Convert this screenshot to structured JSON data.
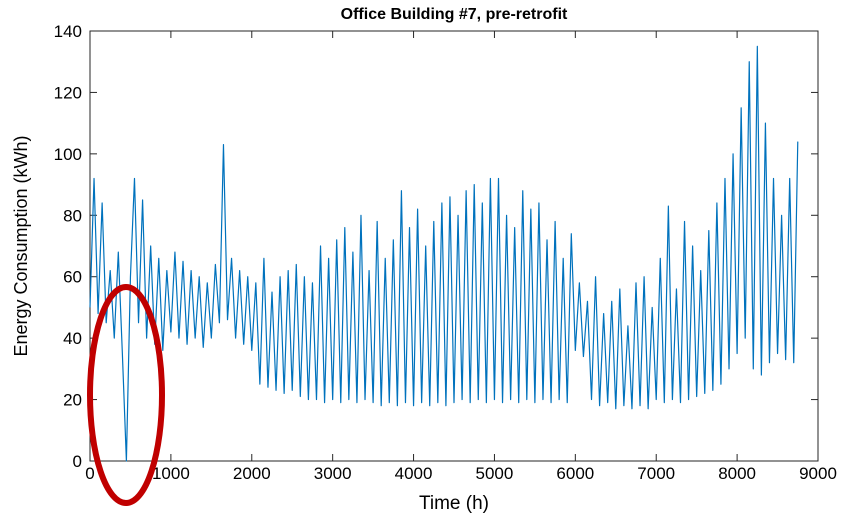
{
  "chart_data": {
    "type": "line",
    "title": "Office Building #7, pre-retrofit",
    "xlabel": "Time (h)",
    "ylabel": "Energy Consumption (kWh)",
    "x": [
      0,
      50,
      100,
      150,
      200,
      250,
      300,
      350,
      400,
      450,
      500,
      550,
      600,
      650,
      700,
      750,
      800,
      850,
      900,
      950,
      1000,
      1050,
      1100,
      1150,
      1200,
      1250,
      1300,
      1350,
      1400,
      1450,
      1500,
      1550,
      1600,
      1650,
      1700,
      1750,
      1800,
      1850,
      1900,
      1950,
      2000,
      2050,
      2100,
      2150,
      2200,
      2250,
      2300,
      2350,
      2400,
      2450,
      2500,
      2550,
      2600,
      2650,
      2700,
      2750,
      2800,
      2850,
      2900,
      2950,
      3000,
      3050,
      3100,
      3150,
      3200,
      3250,
      3300,
      3350,
      3400,
      3450,
      3500,
      3550,
      3600,
      3650,
      3700,
      3750,
      3800,
      3850,
      3900,
      3950,
      4000,
      4050,
      4100,
      4150,
      4200,
      4250,
      4300,
      4350,
      4400,
      4450,
      4500,
      4550,
      4600,
      4650,
      4700,
      4750,
      4800,
      4850,
      4900,
      4950,
      5000,
      5050,
      5100,
      5150,
      5200,
      5250,
      5300,
      5350,
      5400,
      5450,
      5500,
      5550,
      5600,
      5650,
      5700,
      5750,
      5800,
      5850,
      5900,
      5950,
      6000,
      6050,
      6100,
      6150,
      6200,
      6250,
      6300,
      6350,
      6400,
      6450,
      6500,
      6550,
      6600,
      6650,
      6700,
      6750,
      6800,
      6850,
      6900,
      6950,
      7000,
      7050,
      7100,
      7150,
      7200,
      7250,
      7300,
      7350,
      7400,
      7450,
      7500,
      7550,
      7600,
      7650,
      7700,
      7750,
      7800,
      7850,
      7900,
      7950,
      8000,
      8050,
      8100,
      8150,
      8200,
      8250,
      8300,
      8350,
      8400,
      8450,
      8500,
      8550,
      8600,
      8650,
      8700,
      8750
    ],
    "series": [
      {
        "color": "#0072bd",
        "values": [
          50,
          92,
          48,
          84,
          45,
          62,
          40,
          68,
          35,
          0,
          60,
          92,
          45,
          85,
          40,
          70,
          38,
          66,
          36,
          62,
          42,
          68,
          40,
          65,
          38,
          62,
          40,
          60,
          37,
          58,
          40,
          64,
          45,
          103,
          46,
          66,
          40,
          62,
          38,
          60,
          36,
          58,
          25,
          66,
          24,
          55,
          23,
          60,
          22,
          62,
          23,
          64,
          21,
          60,
          20,
          58,
          20,
          70,
          19,
          66,
          20,
          72,
          19,
          76,
          20,
          68,
          19,
          80,
          20,
          62,
          19,
          78,
          18,
          66,
          19,
          72,
          18,
          88,
          19,
          76,
          18,
          82,
          19,
          70,
          18,
          78,
          19,
          84,
          18,
          86,
          19,
          80,
          20,
          88,
          19,
          90,
          20,
          84,
          19,
          92,
          20,
          92,
          19,
          80,
          20,
          76,
          19,
          88,
          20,
          82,
          19,
          84,
          20,
          72,
          19,
          78,
          20,
          66,
          19,
          74,
          36,
          58,
          34,
          52,
          20,
          60,
          18,
          48,
          19,
          52,
          17,
          56,
          18,
          44,
          17,
          58,
          18,
          60,
          17,
          50,
          20,
          66,
          19,
          83,
          20,
          56,
          19,
          78,
          20,
          70,
          21,
          62,
          22,
          75,
          23,
          84,
          25,
          92,
          30,
          100,
          35,
          115,
          40,
          130,
          30,
          135,
          28,
          110,
          32,
          92,
          35,
          80,
          33,
          92,
          32,
          104
        ]
      }
    ],
    "xlim": [
      0,
      9000
    ],
    "ylim": [
      0,
      140
    ],
    "xticks": [
      0,
      1000,
      2000,
      3000,
      4000,
      5000,
      6000,
      7000,
      8000,
      9000
    ],
    "yticks": [
      0,
      20,
      40,
      60,
      80,
      100,
      120,
      140
    ]
  }
}
